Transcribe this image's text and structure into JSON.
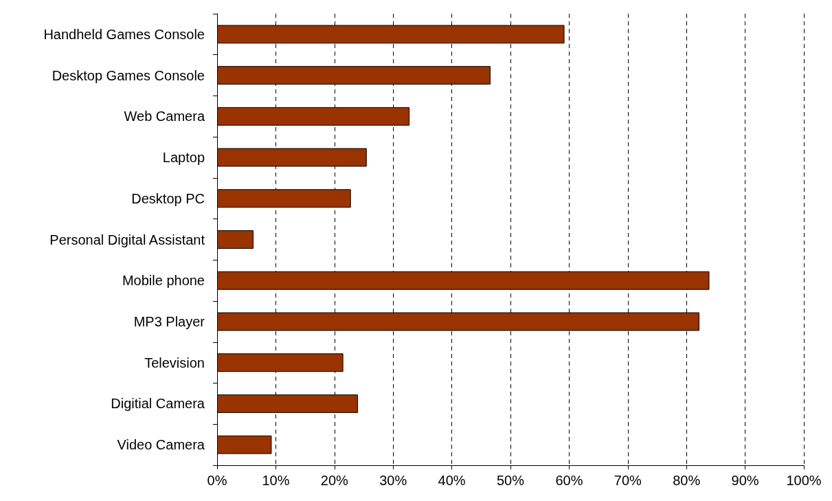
{
  "chart_data": {
    "type": "bar",
    "orientation": "horizontal",
    "categories": [
      "Handheld Games Console",
      "Desktop Games Console",
      "Web Camera",
      "Laptop",
      "Desktop PC",
      "Personal Digital Assistant",
      "Mobile phone",
      "MP3 Player",
      "Television",
      "Digitial Camera",
      "Video Camera"
    ],
    "values": [
      59.2,
      46.6,
      32.8,
      25.5,
      22.8,
      6.2,
      83.9,
      82.2,
      21.5,
      24.0,
      9.3
    ],
    "color": "#993300",
    "xlim": [
      0,
      100
    ],
    "xticks": [
      {
        "value": 0,
        "label": "0%"
      },
      {
        "value": 10,
        "label": "10%"
      },
      {
        "value": 20,
        "label": "20%"
      },
      {
        "value": 30,
        "label": "30%"
      },
      {
        "value": 40,
        "label": "40%"
      },
      {
        "value": 50,
        "label": "50%"
      },
      {
        "value": 60,
        "label": "60%"
      },
      {
        "value": 70,
        "label": "70%"
      },
      {
        "value": 80,
        "label": "80%"
      },
      {
        "value": 90,
        "label": "90%"
      },
      {
        "value": 100,
        "label": "100%"
      }
    ],
    "grid": "x"
  }
}
